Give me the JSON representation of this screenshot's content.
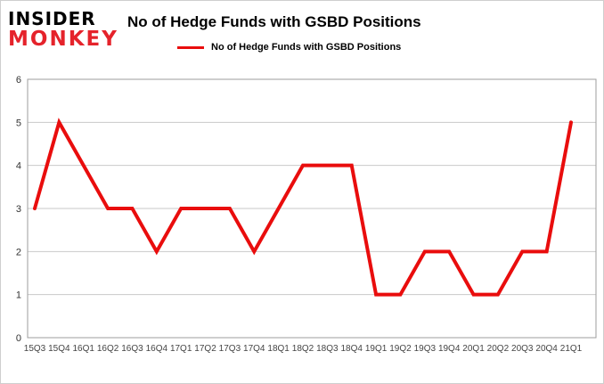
{
  "logo": {
    "line1": "INSIDER",
    "line2": "MONKEY"
  },
  "chart_data": {
    "type": "line",
    "title": "No of Hedge Funds with GSBD Positions",
    "legend": "No of Hedge Funds with GSBD Positions",
    "categories": [
      "15Q3",
      "15Q4",
      "16Q1",
      "16Q2",
      "16Q3",
      "16Q4",
      "17Q1",
      "17Q2",
      "17Q3",
      "17Q4",
      "18Q1",
      "18Q2",
      "18Q3",
      "18Q4",
      "19Q1",
      "19Q2",
      "19Q3",
      "19Q4",
      "20Q1",
      "20Q2",
      "20Q3",
      "20Q4",
      "21Q1"
    ],
    "values": [
      3,
      5,
      4,
      3,
      3,
      2,
      3,
      3,
      3,
      2,
      3,
      4,
      4,
      4,
      1,
      1,
      2,
      2,
      1,
      1,
      2,
      2,
      5
    ],
    "ylim": [
      0,
      6
    ],
    "yticks": [
      0,
      1,
      2,
      3,
      4,
      5,
      6
    ],
    "xlabel": "",
    "ylabel": "",
    "grid": true,
    "legend_position": "top",
    "line_color": "#e90d0d",
    "grid_color": "#c9c9c9",
    "frame_color": "#9e9e9e"
  }
}
